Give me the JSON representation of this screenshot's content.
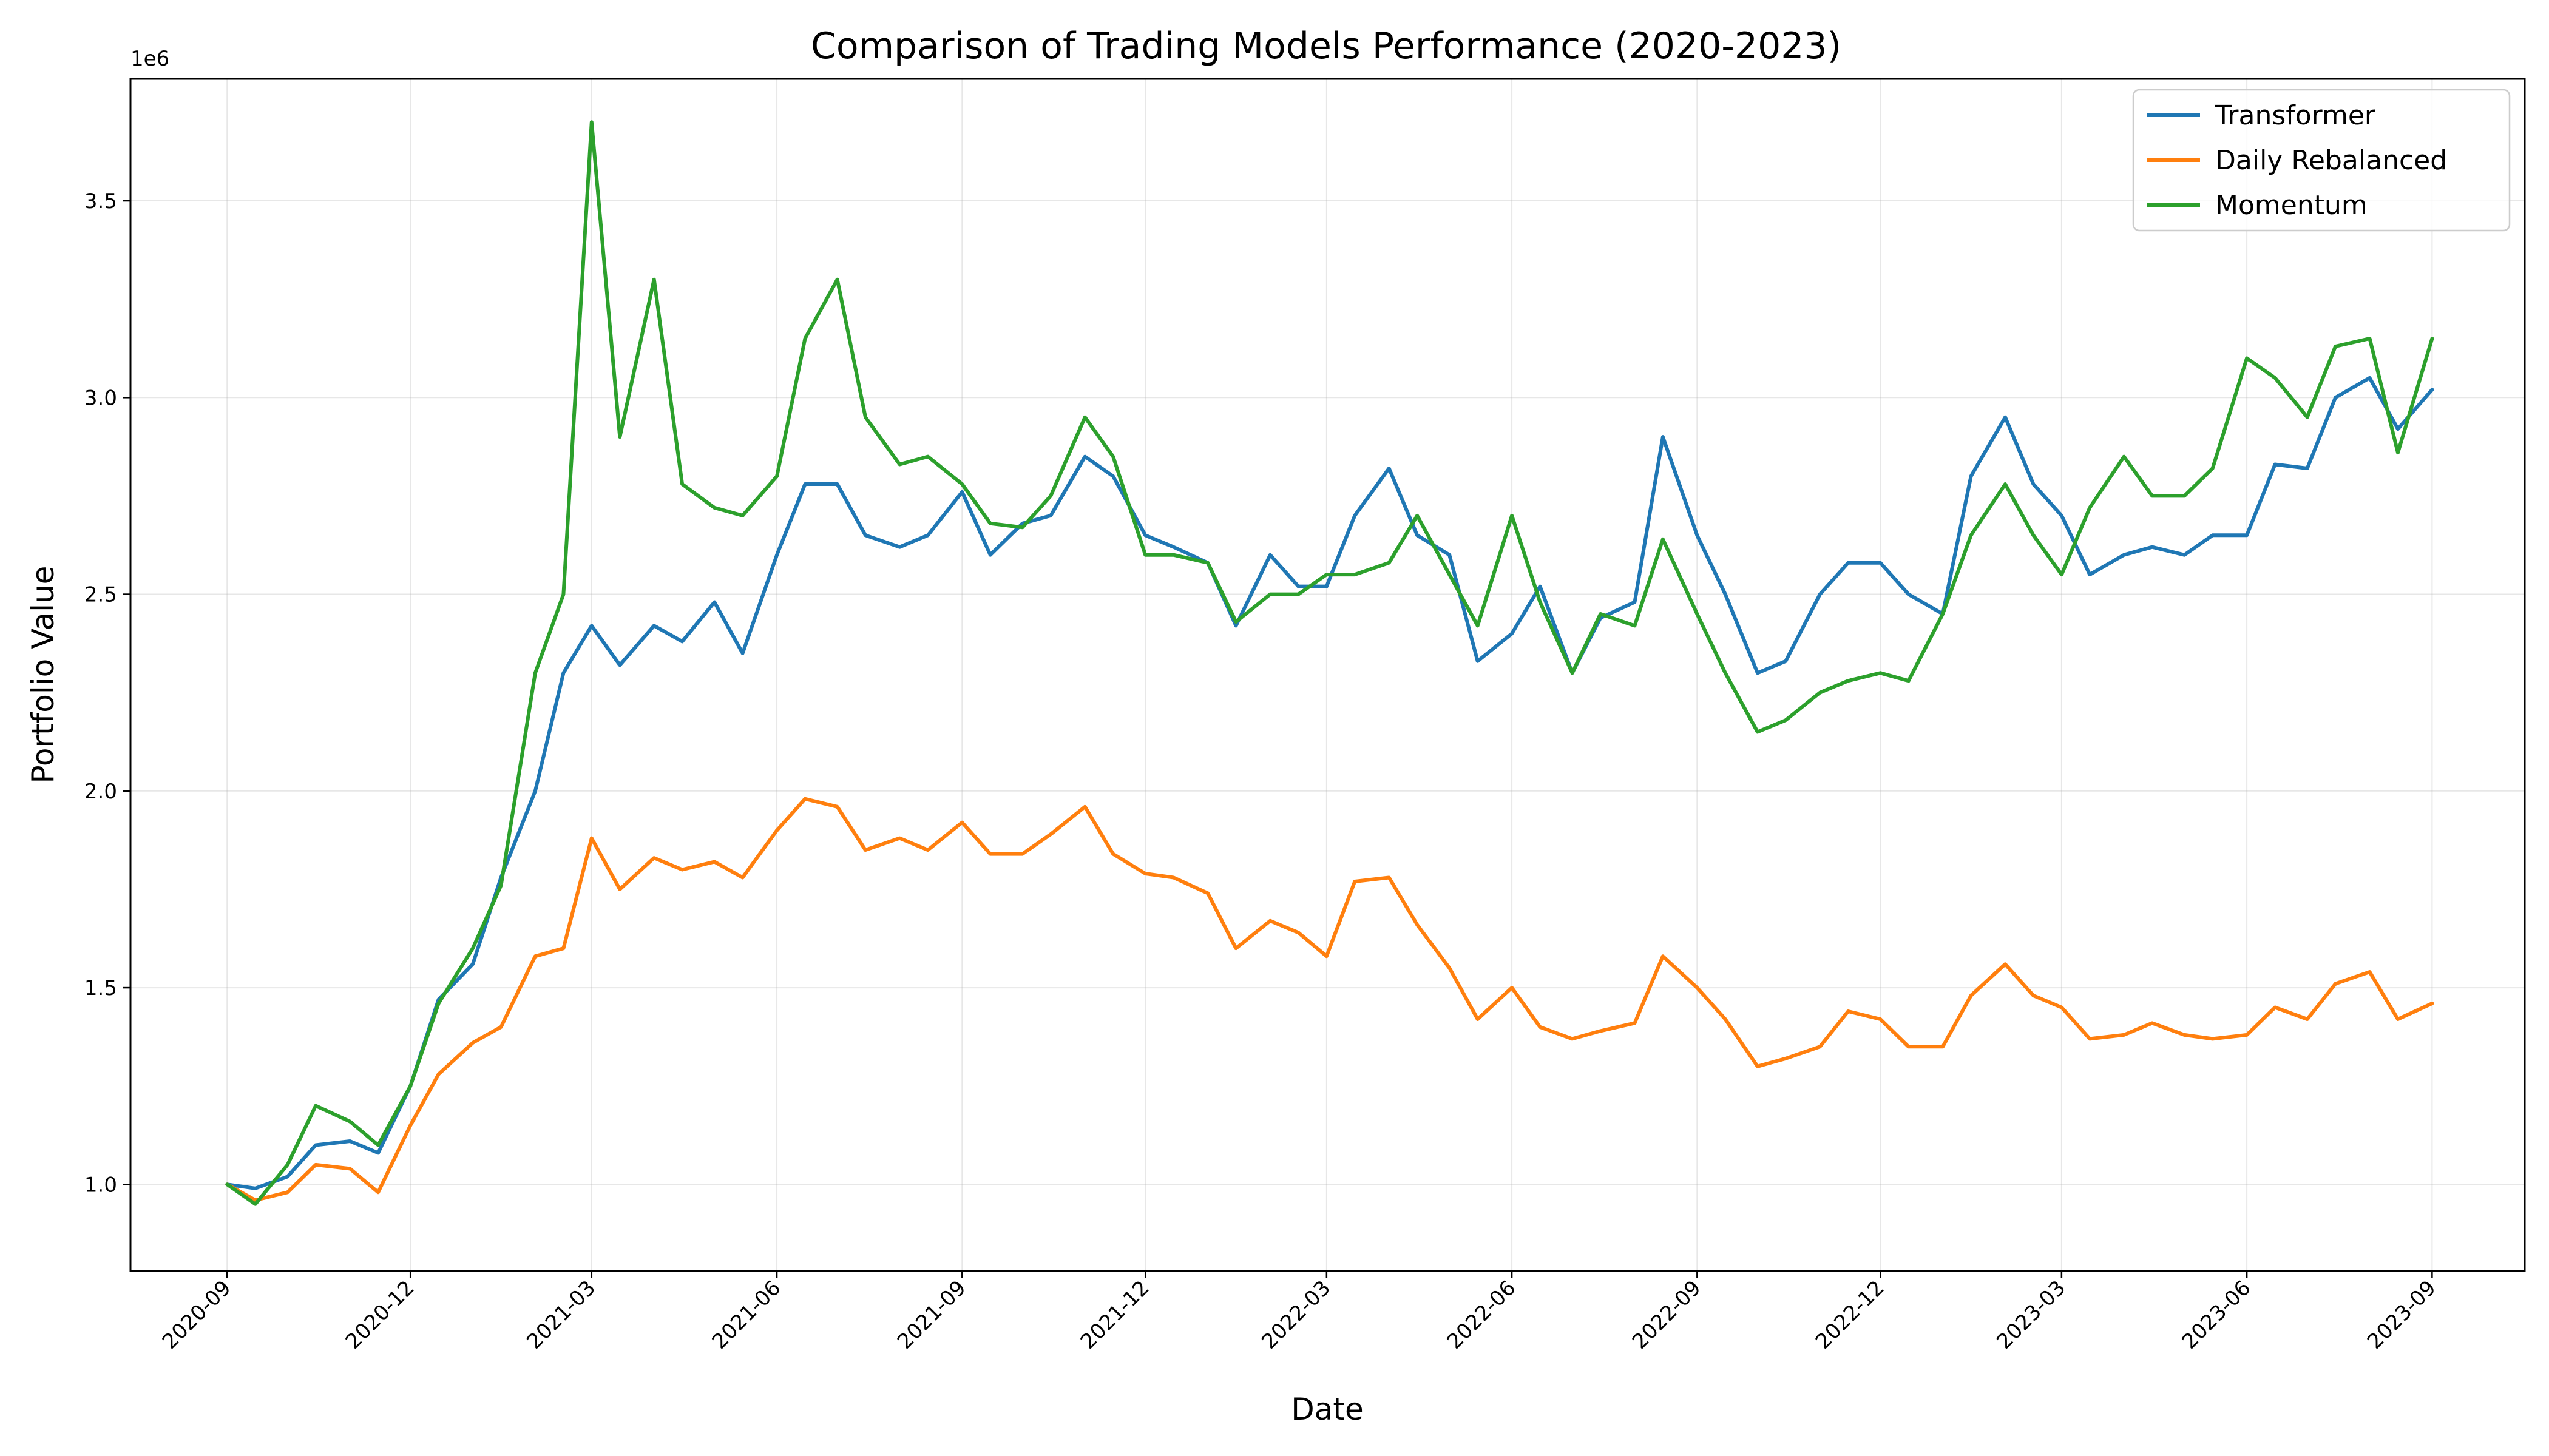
{
  "chart_data": {
    "type": "line",
    "title": "Comparison of Trading Models Performance (2020-2023)",
    "xlabel": "Date",
    "ylabel": "Portfolio Value",
    "y_offset_label": "1e6",
    "xlim": [
      "2020-07-15",
      "2023-10-17"
    ],
    "ylim": [
      780000,
      3810000
    ],
    "grid": true,
    "legend_position": "top-right",
    "x_ticks": [
      "2020-09",
      "2020-12",
      "2021-03",
      "2021-06",
      "2021-09",
      "2021-12",
      "2022-03",
      "2022-06",
      "2022-09",
      "2022-12",
      "2023-03",
      "2023-06",
      "2023-09"
    ],
    "y_ticks": [
      {
        "value": 1000000,
        "label": "1.0"
      },
      {
        "value": 1500000,
        "label": "1.5"
      },
      {
        "value": 2000000,
        "label": "2.0"
      },
      {
        "value": 2500000,
        "label": "2.5"
      },
      {
        "value": 3000000,
        "label": "3.0"
      },
      {
        "value": 3500000,
        "label": "3.5"
      }
    ],
    "x": [
      "2020-09-01",
      "2020-09-15",
      "2020-10-01",
      "2020-10-15",
      "2020-11-01",
      "2020-11-15",
      "2020-12-01",
      "2020-12-15",
      "2021-01-01",
      "2021-01-15",
      "2021-02-01",
      "2021-02-15",
      "2021-03-01",
      "2021-03-15",
      "2021-04-01",
      "2021-04-15",
      "2021-05-01",
      "2021-05-15",
      "2021-06-01",
      "2021-06-15",
      "2021-07-01",
      "2021-07-15",
      "2021-08-01",
      "2021-08-15",
      "2021-09-01",
      "2021-09-15",
      "2021-10-01",
      "2021-10-15",
      "2021-11-01",
      "2021-11-15",
      "2021-12-01",
      "2021-12-15",
      "2022-01-01",
      "2022-01-15",
      "2022-02-01",
      "2022-02-15",
      "2022-03-01",
      "2022-03-15",
      "2022-04-01",
      "2022-04-15",
      "2022-05-01",
      "2022-05-15",
      "2022-06-01",
      "2022-06-15",
      "2022-07-01",
      "2022-07-15",
      "2022-08-01",
      "2022-08-15",
      "2022-09-01",
      "2022-09-15",
      "2022-10-01",
      "2022-10-15",
      "2022-11-01",
      "2022-11-15",
      "2022-12-01",
      "2022-12-15",
      "2023-01-01",
      "2023-01-15",
      "2023-02-01",
      "2023-02-15",
      "2023-03-01",
      "2023-03-15",
      "2023-04-01",
      "2023-04-15",
      "2023-05-01",
      "2023-05-15",
      "2023-06-01",
      "2023-06-15",
      "2023-07-01",
      "2023-07-15",
      "2023-08-01",
      "2023-08-15",
      "2023-09-01"
    ],
    "series": [
      {
        "name": "Transformer",
        "color": "#1f77b4",
        "values": [
          1000000,
          990000,
          1020000,
          1100000,
          1110000,
          1080000,
          1250000,
          1470000,
          1560000,
          1780000,
          2000000,
          2300000,
          2420000,
          2320000,
          2420000,
          2380000,
          2480000,
          2350000,
          2600000,
          2780000,
          2780000,
          2650000,
          2620000,
          2650000,
          2760000,
          2600000,
          2680000,
          2700000,
          2850000,
          2800000,
          2650000,
          2620000,
          2580000,
          2420000,
          2600000,
          2520000,
          2520000,
          2700000,
          2820000,
          2650000,
          2600000,
          2330000,
          2400000,
          2520000,
          2300000,
          2440000,
          2480000,
          2900000,
          2650000,
          2500000,
          2300000,
          2330000,
          2500000,
          2580000,
          2580000,
          2500000,
          2450000,
          2800000,
          2950000,
          2780000,
          2700000,
          2550000,
          2600000,
          2620000,
          2600000,
          2650000,
          2650000,
          2830000,
          2820000,
          3000000,
          3050000,
          2920000,
          3020000
        ]
      },
      {
        "name": "Daily Rebalanced",
        "color": "#ff7f0e",
        "values": [
          1000000,
          960000,
          980000,
          1050000,
          1040000,
          980000,
          1150000,
          1280000,
          1360000,
          1400000,
          1580000,
          1600000,
          1880000,
          1750000,
          1830000,
          1800000,
          1820000,
          1780000,
          1900000,
          1980000,
          1960000,
          1850000,
          1880000,
          1850000,
          1920000,
          1840000,
          1840000,
          1890000,
          1960000,
          1840000,
          1790000,
          1780000,
          1740000,
          1600000,
          1670000,
          1640000,
          1580000,
          1770000,
          1780000,
          1660000,
          1550000,
          1420000,
          1500000,
          1400000,
          1370000,
          1390000,
          1410000,
          1580000,
          1500000,
          1420000,
          1300000,
          1320000,
          1350000,
          1440000,
          1420000,
          1350000,
          1350000,
          1480000,
          1560000,
          1480000,
          1450000,
          1370000,
          1380000,
          1410000,
          1380000,
          1370000,
          1380000,
          1450000,
          1420000,
          1510000,
          1540000,
          1420000,
          1460000
        ]
      },
      {
        "name": "Momentum",
        "color": "#2ca02c",
        "values": [
          1000000,
          950000,
          1050000,
          1200000,
          1160000,
          1100000,
          1250000,
          1460000,
          1600000,
          1760000,
          2300000,
          2500000,
          3700000,
          2900000,
          3300000,
          2780000,
          2720000,
          2700000,
          2800000,
          3150000,
          3300000,
          2950000,
          2830000,
          2850000,
          2780000,
          2680000,
          2670000,
          2750000,
          2950000,
          2850000,
          2600000,
          2600000,
          2580000,
          2430000,
          2500000,
          2500000,
          2550000,
          2550000,
          2580000,
          2700000,
          2550000,
          2420000,
          2700000,
          2480000,
          2300000,
          2450000,
          2420000,
          2640000,
          2450000,
          2300000,
          2150000,
          2180000,
          2250000,
          2280000,
          2300000,
          2280000,
          2450000,
          2650000,
          2780000,
          2650000,
          2550000,
          2720000,
          2850000,
          2750000,
          2750000,
          2820000,
          3100000,
          3050000,
          2950000,
          3130000,
          3150000,
          2860000,
          3150000
        ]
      }
    ]
  }
}
